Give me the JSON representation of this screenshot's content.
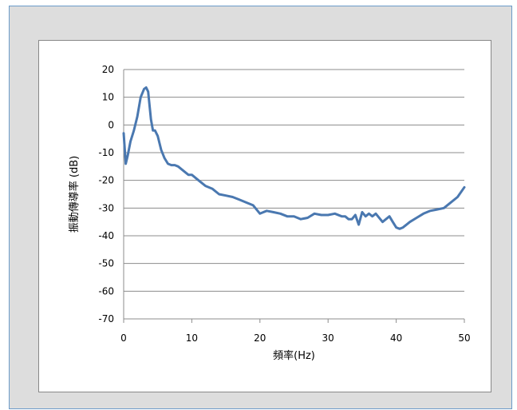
{
  "chart_data": {
    "type": "line",
    "title": "",
    "xlabel": "頻率(Hz)",
    "ylabel": "振動傳導率 (dB)",
    "xlim": [
      0,
      50
    ],
    "ylim": [
      -70,
      20
    ],
    "xticks": [
      0,
      10,
      20,
      30,
      40,
      50
    ],
    "yticks": [
      20,
      10,
      0,
      -10,
      -20,
      -30,
      -40,
      -50,
      -60,
      -70
    ],
    "grid": "horizontal",
    "legend": "none",
    "line_color": "#4a78b0",
    "series": [
      {
        "x": [
          0,
          0.3,
          0.6,
          1.0,
          1.5,
          2.0,
          2.5,
          3.0,
          3.3,
          3.6,
          4.0,
          4.3,
          4.6,
          5.0,
          5.5,
          6.0,
          6.5,
          7.0,
          7.5,
          8.0,
          8.5,
          9.0,
          9.5,
          10,
          11,
          12,
          13,
          14,
          15,
          16,
          17,
          18,
          19,
          19.5,
          20,
          20.5,
          21,
          22,
          23,
          24,
          25,
          26,
          27,
          28,
          29,
          30,
          31,
          32,
          32.5,
          33,
          33.5,
          34,
          34.5,
          35,
          35.5,
          36,
          36.5,
          37,
          38,
          39,
          39.5,
          40,
          40.5,
          41,
          42,
          43,
          44,
          45,
          46,
          47,
          48,
          49,
          50
        ],
        "y": [
          -3,
          -14,
          -11,
          -6,
          -2,
          3,
          10,
          13,
          13.5,
          12,
          2,
          -2,
          -2,
          -4,
          -9,
          -12,
          -14,
          -14.5,
          -14.5,
          -15,
          -16,
          -17,
          -18,
          -18,
          -20,
          -22,
          -23,
          -25,
          -25.5,
          -26,
          -27,
          -28,
          -29,
          -30.5,
          -32,
          -31.5,
          -31,
          -31.5,
          -32,
          -33,
          -33,
          -34,
          -33.5,
          -32,
          -32.5,
          -32.5,
          -32,
          -33,
          -33,
          -34,
          -34,
          -32.5,
          -36,
          -31.5,
          -33,
          -32,
          -33,
          -32,
          -35,
          -33,
          -35,
          -37,
          -37.5,
          -37,
          -35,
          -33.5,
          -32,
          -31,
          -30.5,
          -30,
          -28,
          -26,
          -22.5
        ]
      }
    ]
  }
}
